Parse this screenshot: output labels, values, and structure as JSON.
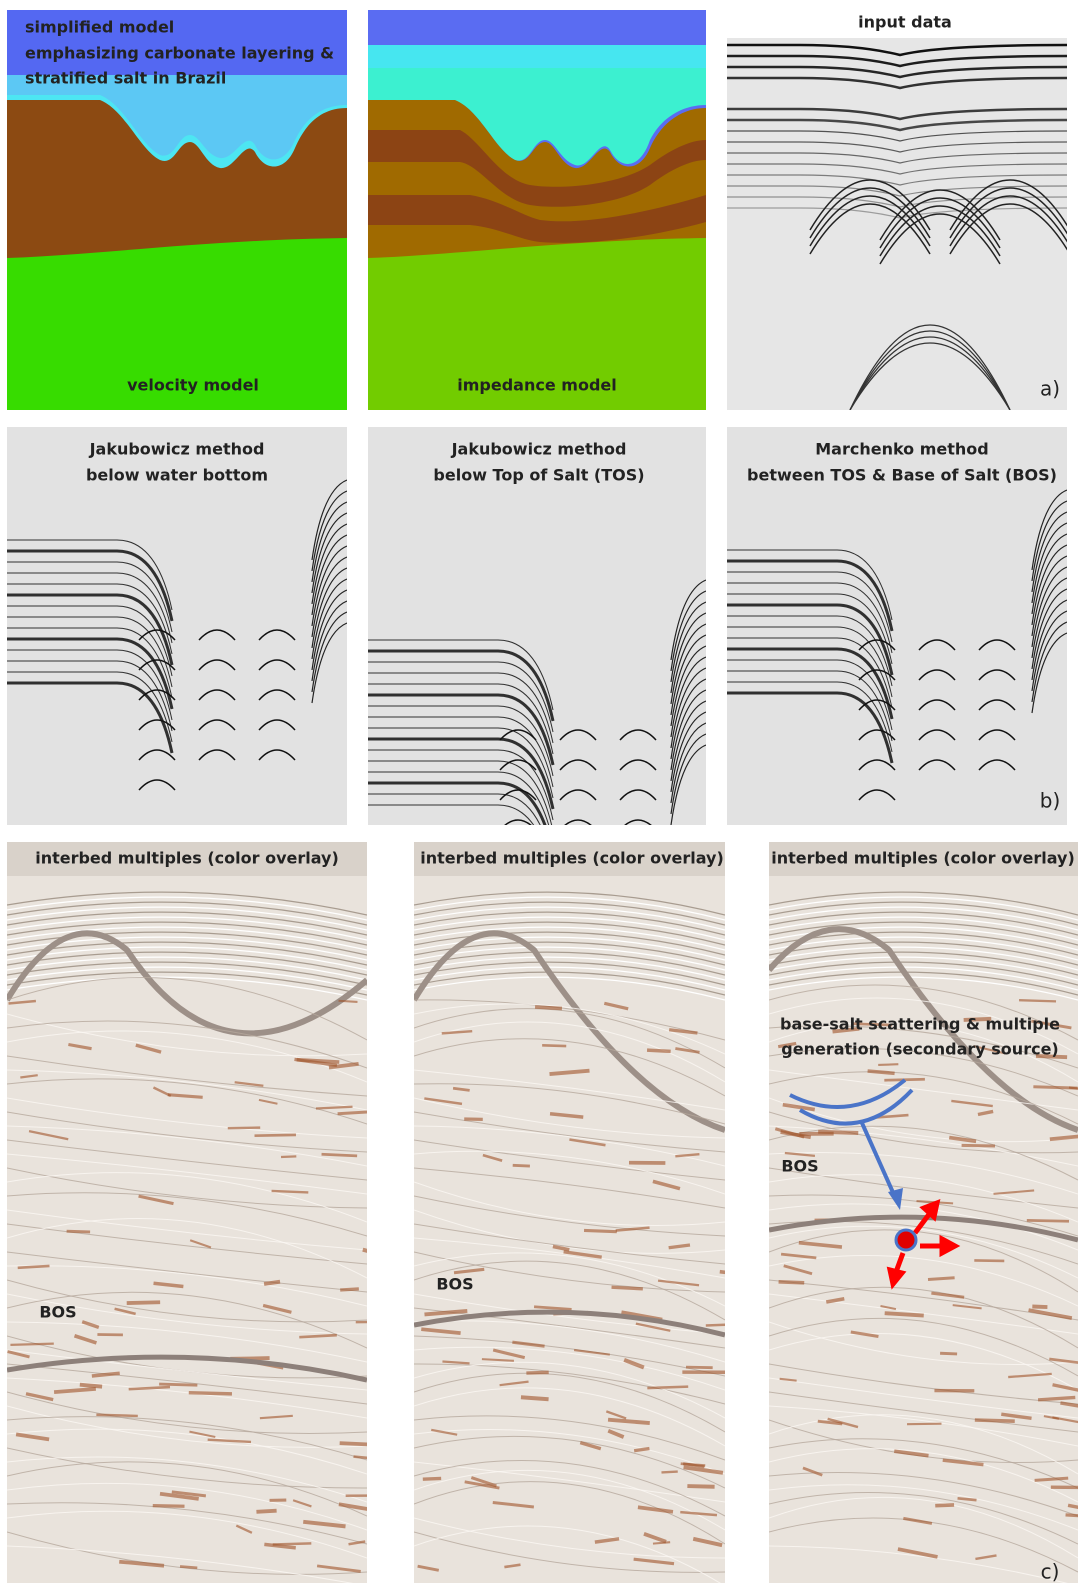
{
  "panels": [
    {
      "lines": [
        "simplified model",
        "emphasizing carbonate layering &",
        "stratified salt in Brazil"
      ],
      "caption": "velocity model"
    },
    {
      "caption": "impedance model"
    },
    {
      "title": "input data",
      "tag": "a)"
    },
    {
      "lines": [
        "Jakubowicz method",
        "below water bottom"
      ]
    },
    {
      "lines": [
        "Jakubowicz method",
        "below Top of Salt (TOS)"
      ]
    },
    {
      "lines": [
        "Marchenko method",
        "between TOS & Base of Salt (BOS)"
      ],
      "tag": "b)"
    },
    {
      "title": "interbed multiples (color overlay)",
      "labels": [
        "BOS"
      ]
    },
    {
      "title": "interbed multiples (color overlay)",
      "labels": [
        "BOS"
      ]
    },
    {
      "title": "interbed multiples (color overlay)",
      "annotation": [
        "base-salt scattering & multiple",
        "generation (secondary source)"
      ],
      "labels": [
        "BOS"
      ],
      "tag": "c)"
    }
  ]
}
